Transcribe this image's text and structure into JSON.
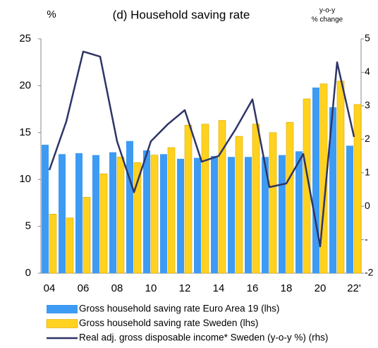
{
  "chart_data": {
    "type": "combo",
    "title": "(d) Household saving rate",
    "ylabel": "%",
    "y2label": [
      "y-o-y",
      "% change"
    ],
    "categories": [
      "04",
      null,
      "06",
      null,
      "08",
      null,
      "10",
      null,
      "12",
      null,
      "14",
      null,
      "16",
      null,
      "18",
      null,
      "20",
      null,
      "22'"
    ],
    "series": [
      {
        "name": "Gross household saving rate Euro Area 19 (lhs)",
        "type": "bar",
        "color": "#3d9bf3",
        "values": [
          13.7,
          12.7,
          12.8,
          12.6,
          12.9,
          14.1,
          13.1,
          12.7,
          12.2,
          12.3,
          12.5,
          12.4,
          12.4,
          12.4,
          12.6,
          13.0,
          19.8,
          17.7,
          13.6
        ]
      },
      {
        "name": "Gross household saving rate Sweden (lhs)",
        "type": "bar",
        "color": "#ffd21f",
        "values": [
          6.3,
          5.9,
          8.1,
          10.6,
          12.4,
          11.8,
          12.6,
          13.4,
          15.8,
          15.9,
          16.3,
          14.6,
          15.9,
          15.0,
          16.1,
          18.6,
          20.2,
          20.5,
          18.0
        ]
      },
      {
        "name": "Real adj. gross disposable income* Sweden (y-o-y %) (rhs)",
        "type": "line",
        "axis": "y2",
        "color": "#2e3566",
        "values": [
          1.08,
          2.53,
          4.62,
          4.47,
          1.94,
          0.42,
          1.94,
          2.45,
          2.87,
          1.33,
          1.5,
          2.3,
          3.19,
          0.57,
          0.68,
          1.56,
          -1.2,
          4.3,
          2.07
        ]
      }
    ],
    "ylim": [
      0,
      25
    ],
    "yticks": [
      0,
      5,
      10,
      15,
      20,
      25
    ],
    "y2lim": [
      -2,
      5
    ],
    "y2ticks": [
      -2,
      {
        "value": -1,
        "label": "-"
      },
      0,
      1,
      2,
      3,
      4,
      5
    ],
    "legend": "bottom"
  }
}
